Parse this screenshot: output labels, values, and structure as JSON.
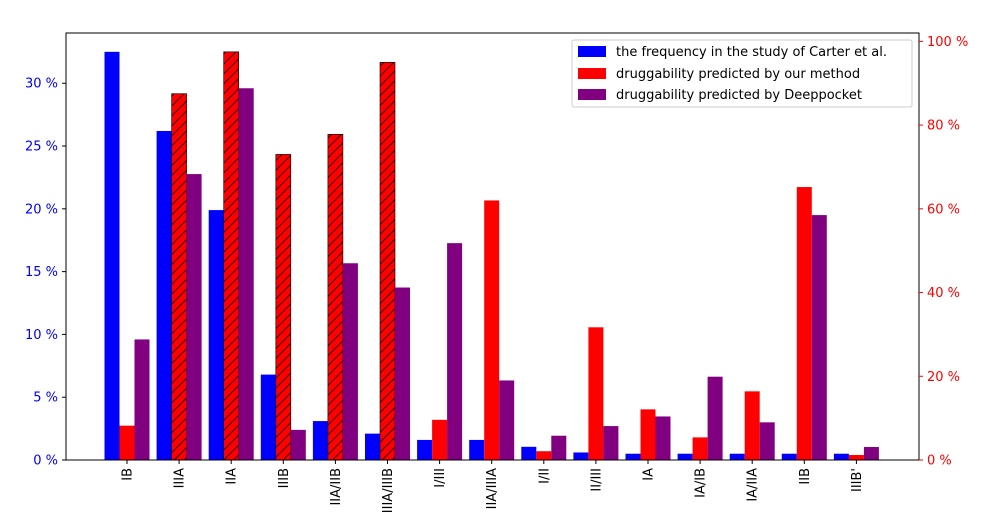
{
  "chart_data": {
    "type": "bar",
    "title": "",
    "xlabel": "",
    "categories": [
      "IB",
      "IIIA",
      "IIA",
      "IIIB",
      "IIA/IIB",
      "IIIA/IIIB",
      "I/III",
      "IIA/IIIA",
      "I/II",
      "II/III",
      "IA",
      "IA/IB",
      "IA/IIA",
      "IIB",
      "IIIB'"
    ],
    "left_axis": {
      "ylim": [
        0,
        34
      ],
      "ticks": [
        0,
        5,
        10,
        15,
        20,
        25,
        30
      ],
      "tick_labels": [
        "0 %",
        "5 %",
        "10 %",
        "15 %",
        "20 %",
        "25 %",
        "30 %"
      ],
      "color": "#0000ff"
    },
    "right_axis": {
      "ylim": [
        0,
        102
      ],
      "ticks": [
        0,
        20,
        40,
        60,
        80,
        100
      ],
      "tick_labels": [
        "0 %",
        "20 %",
        "40 %",
        "60 %",
        "80 %",
        "100 %"
      ],
      "color": "#ff0000"
    },
    "series": [
      {
        "name": "the frequency in the study of Carter et al.",
        "axis": "left",
        "color": "#0000ff",
        "values": [
          32.5,
          26.2,
          19.9,
          6.8,
          3.1,
          2.1,
          1.6,
          1.6,
          1.05,
          0.6,
          0.5,
          0.5,
          0.5,
          0.5,
          0.5
        ]
      },
      {
        "name": "druggability predicted by our method",
        "axis": "right",
        "color": "#ff0000",
        "values": [
          8.2,
          87.5,
          97.5,
          73.0,
          77.8,
          95.0,
          9.6,
          62.0,
          2.1,
          31.7,
          12.1,
          5.4,
          16.4,
          65.2,
          1.2
        ],
        "hatched": [
          false,
          true,
          true,
          true,
          true,
          true,
          false,
          false,
          false,
          false,
          false,
          false,
          false,
          false,
          false
        ]
      },
      {
        "name": "druggability predicted by Deeppocket",
        "axis": "right",
        "color": "#800080",
        "values": [
          28.8,
          68.3,
          88.8,
          7.2,
          47.0,
          41.2,
          51.8,
          19.0,
          5.8,
          8.1,
          10.4,
          19.9,
          9.0,
          58.5,
          3.1
        ]
      }
    ],
    "legend_position": "top-right"
  }
}
